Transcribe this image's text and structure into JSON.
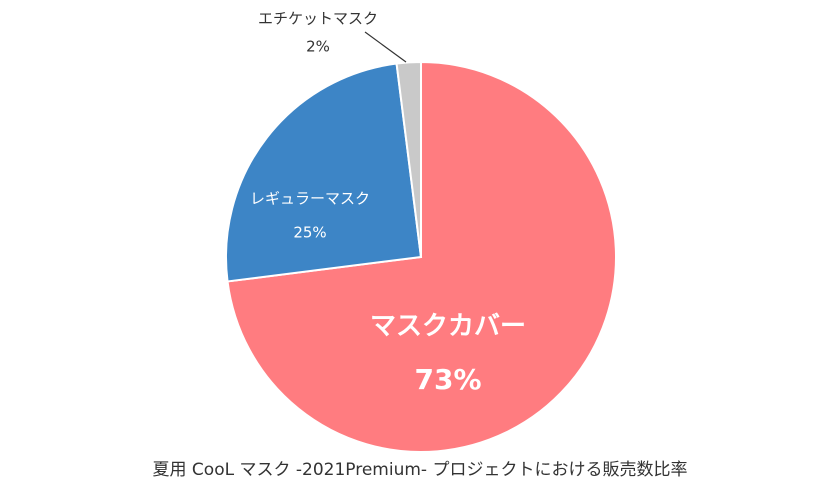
{
  "chart_data": {
    "type": "pie",
    "caption": "夏用 CooL マスク -2021Premium- プロジェクトにおける販売数比率",
    "slices": [
      {
        "name": "マスクカバー",
        "value": 73,
        "label": "73%",
        "color": "#FF7C80"
      },
      {
        "name": "レギュラーマスク",
        "value": 25,
        "label": "25%",
        "color": "#3D85C6"
      },
      {
        "name": "エチケットマスク",
        "value": 2,
        "label": "2%",
        "color": "#C9C9C9"
      }
    ],
    "start": "12 o'clock",
    "direction": "clockwise",
    "legend": "none"
  }
}
